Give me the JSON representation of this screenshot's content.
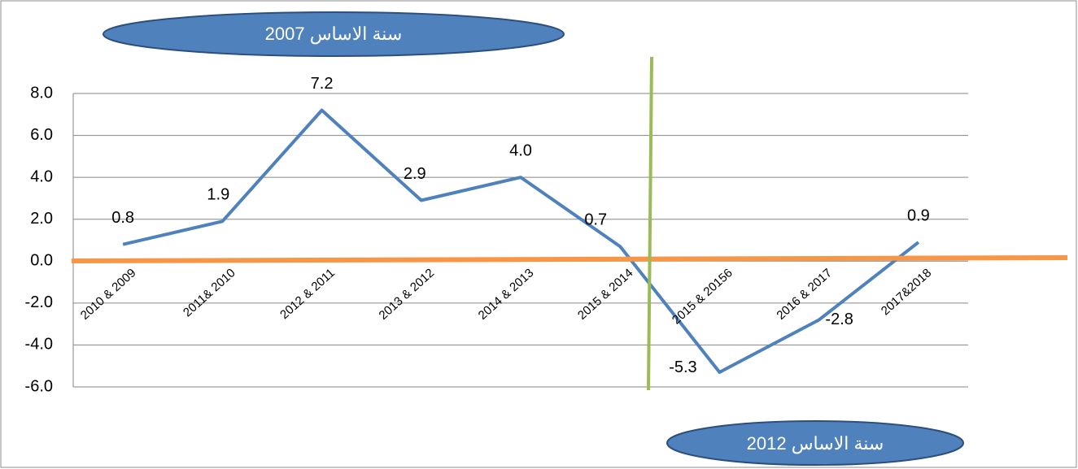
{
  "chart_data": {
    "type": "line",
    "categories": [
      "2010 & 2009",
      "2011& 2010",
      "2012 & 2011",
      "2013 & 2012",
      "2014 & 2013",
      "2015 & 2014",
      "2015 & 20156",
      "2016 & 2017",
      "2017&2018"
    ],
    "series": [
      {
        "name": null,
        "color": "#4f81bd",
        "values": [
          0.8,
          1.9,
          7.2,
          2.9,
          4.0,
          0.7,
          -5.3,
          -2.8,
          0.9
        ],
        "value_labels": [
          "0.8",
          "1.9",
          "7.2",
          "2.9",
          "4.0",
          "0.7",
          "-5.3",
          "-2.8",
          "0.9"
        ]
      }
    ],
    "ylim": [
      -6,
      8
    ],
    "yticks": [
      {
        "value": -6,
        "label": "-6.0"
      },
      {
        "value": -4,
        "label": "-4.0"
      },
      {
        "value": -2,
        "label": "-2.0"
      },
      {
        "value": 0,
        "label": "0.0"
      },
      {
        "value": 2,
        "label": "2.0"
      },
      {
        "value": 4,
        "label": "4.0"
      },
      {
        "value": 6,
        "label": "6.0"
      },
      {
        "value": 8,
        "label": "8.0"
      }
    ],
    "grid": true,
    "annotations": [
      "سنة الاساس 2007",
      "سنة الاساس 2012"
    ]
  }
}
